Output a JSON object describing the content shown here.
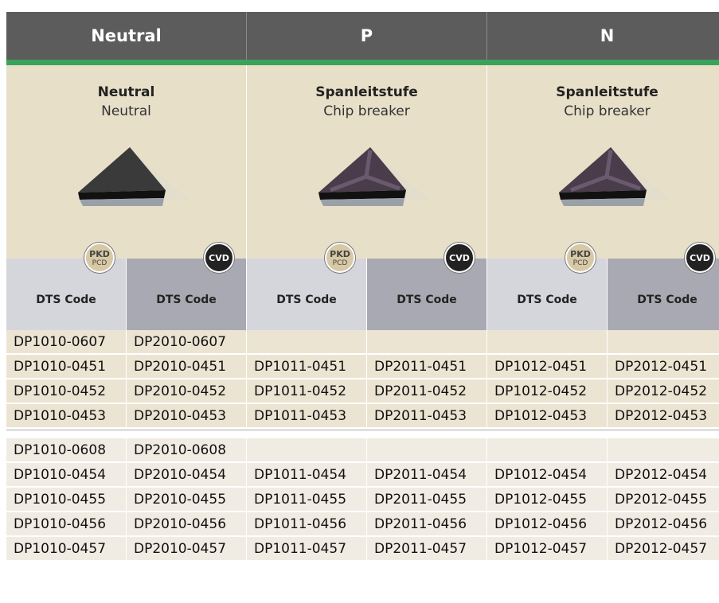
{
  "groups": [
    {
      "header": "Neutral",
      "title": "Neutral",
      "subtitle": "Neutral"
    },
    {
      "header": "P",
      "title": "Spanleitstufe",
      "subtitle": "Chip breaker"
    },
    {
      "header": "N",
      "title": "Spanleitstufe",
      "subtitle": "Chip breaker"
    }
  ],
  "badges": {
    "pkd": "PKD",
    "pcd": "PCD",
    "cvd": "CVD"
  },
  "column_label": "DTS Code",
  "table": {
    "sections": [
      [
        [
          "DP1010-0607",
          "DP2010-0607",
          null,
          null,
          null,
          null
        ],
        [
          "DP1010-0451",
          "DP2010-0451",
          "DP1011-0451",
          "DP2011-0451",
          "DP1012-0451",
          "DP2012-0451"
        ],
        [
          "DP1010-0452",
          "DP2010-0452",
          "DP1011-0452",
          "DP2011-0452",
          "DP1012-0452",
          "DP2012-0452"
        ],
        [
          "DP1010-0453",
          "DP2010-0453",
          "DP1011-0453",
          "DP2011-0453",
          "DP1012-0453",
          "DP2012-0453"
        ]
      ],
      [
        [
          "DP1010-0608",
          "DP2010-0608",
          null,
          null,
          null,
          null
        ],
        [
          "DP1010-0454",
          "DP2010-0454",
          "DP1011-0454",
          "DP2011-0454",
          "DP1012-0454",
          "DP2012-0454"
        ],
        [
          "DP1010-0455",
          "DP2010-0455",
          "DP1011-0455",
          "DP2011-0455",
          "DP1012-0455",
          "DP2012-0455"
        ],
        [
          "DP1010-0456",
          "DP2010-0456",
          "DP1011-0456",
          "DP2011-0456",
          "DP1012-0456",
          "DP2012-0456"
        ],
        [
          "DP1010-0457",
          "DP2010-0457",
          "DP1011-0457",
          "DP2011-0457",
          "DP1012-0457",
          "DP2012-0457"
        ]
      ]
    ]
  }
}
